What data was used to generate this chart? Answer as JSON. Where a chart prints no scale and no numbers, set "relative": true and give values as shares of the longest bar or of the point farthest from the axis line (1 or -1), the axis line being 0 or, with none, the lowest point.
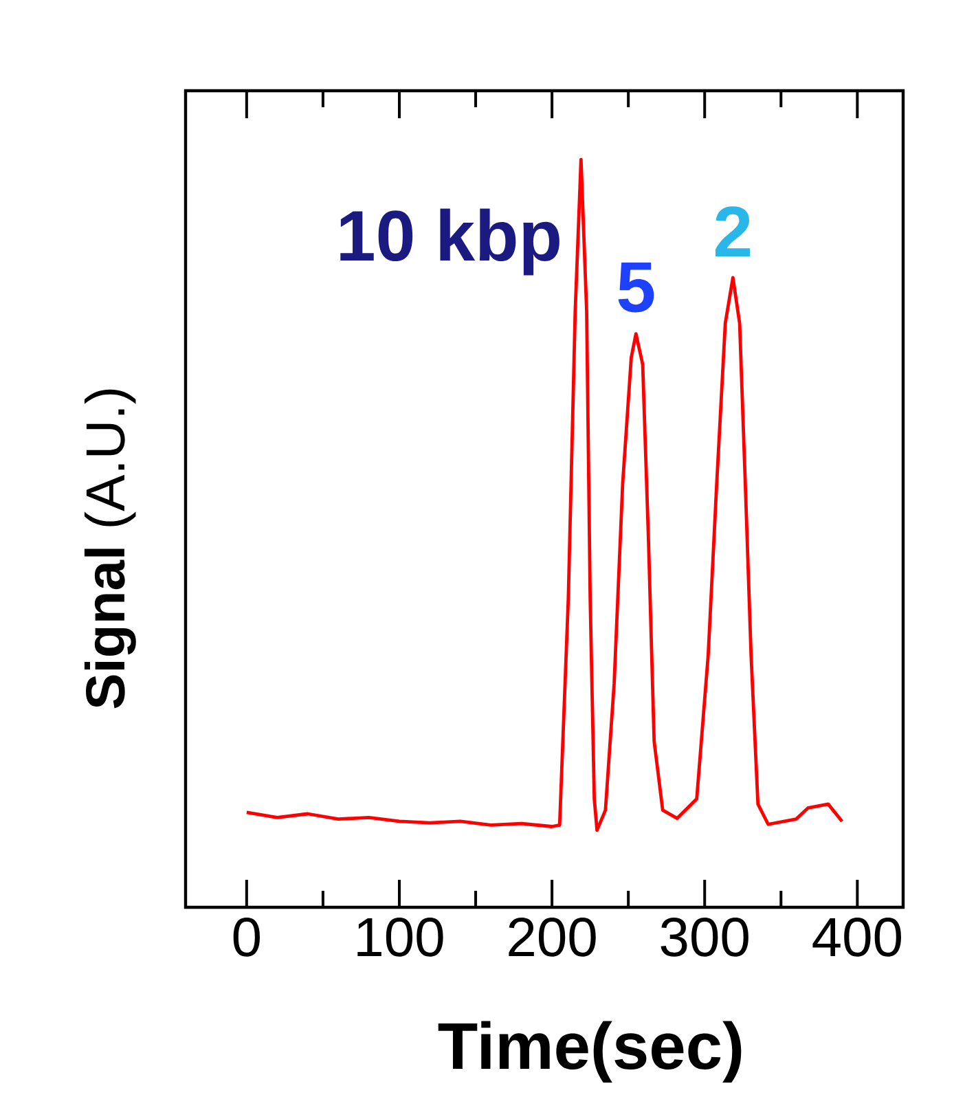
{
  "chart_data": {
    "type": "line",
    "relative": true,
    "xlabel": "Time(sec)",
    "ylabel": "**Signal** (A.U.)",
    "xlim": [
      -40,
      430
    ],
    "xticks": [
      0,
      {
        "value": 50,
        "label": null
      },
      100,
      {
        "value": 150,
        "label": null
      },
      200,
      {
        "value": 250,
        "label": null
      },
      300,
      {
        "value": 350,
        "label": null
      },
      400
    ],
    "annotations": [
      {
        "text": "10 kbp",
        "x": 219,
        "y": 1.0
      },
      {
        "text": "5",
        "x": 255,
        "y": 0.767
      },
      {
        "text": "2",
        "x": 318.5,
        "y": 0.842
      }
    ],
    "series": [
      {
        "color": "#ff0000",
        "x": [
          0,
          20,
          40,
          60,
          80,
          100,
          120,
          140,
          160,
          180,
          200,
          205,
          210.7,
          215.2,
          219,
          222.7,
          225,
          227.7,
          229.5,
          235,
          240.7,
          246.3,
          251.9,
          255,
          259.4,
          263.2,
          266.9,
          272.5,
          282,
          294.8,
          302.3,
          307.9,
          313.5,
          318.5,
          322.9,
          326.6,
          330.4,
          334.9,
          341.6,
          360,
          367.8,
          380.9,
          390
        ],
        "values": [
          0.127,
          0.12,
          0.125,
          0.118,
          0.12,
          0.115,
          0.113,
          0.115,
          0.11,
          0.112,
          0.108,
          0.11,
          0.414,
          0.797,
          1.0,
          0.797,
          0.414,
          0.145,
          0.103,
          0.13,
          0.299,
          0.567,
          0.735,
          0.767,
          0.726,
          0.491,
          0.222,
          0.13,
          0.119,
          0.145,
          0.337,
          0.567,
          0.781,
          0.842,
          0.781,
          0.567,
          0.337,
          0.138,
          0.111,
          0.118,
          0.133,
          0.138,
          0.115
        ]
      }
    ]
  }
}
